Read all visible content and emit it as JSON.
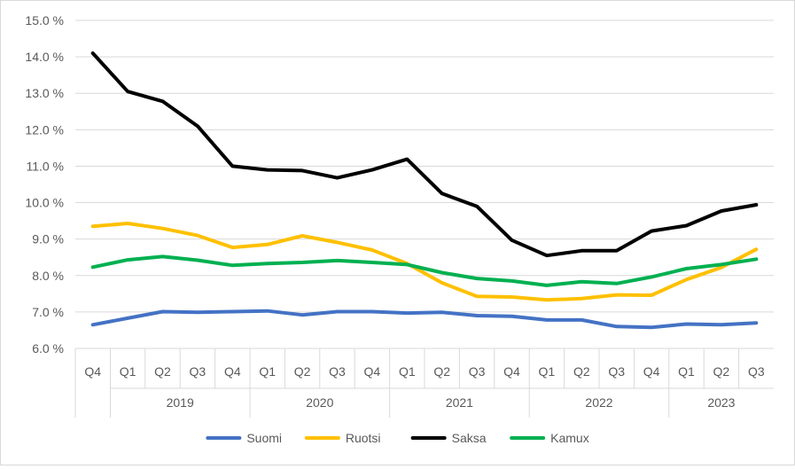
{
  "chart_data": {
    "type": "line",
    "title": "",
    "xlabel": "",
    "ylabel": "",
    "ylim": [
      6.0,
      15.0
    ],
    "ystep": 1.0,
    "y_tick_labels": [
      "6.0 %",
      "7.0 %",
      "8.0 %",
      "9.0 %",
      "10.0 %",
      "11.0 %",
      "12.0 %",
      "13.0 %",
      "14.0 %",
      "15.0 %"
    ],
    "grid": "horizontal",
    "legend_position": "bottom",
    "categories": [
      "Q4",
      "Q1",
      "Q2",
      "Q3",
      "Q4",
      "Q1",
      "Q2",
      "Q3",
      "Q4",
      "Q1",
      "Q2",
      "Q3",
      "Q4",
      "Q1",
      "Q2",
      "Q3",
      "Q4",
      "Q1",
      "Q2",
      "Q3"
    ],
    "year_groups": [
      {
        "label": "",
        "span": 1
      },
      {
        "label": "2019",
        "span": 4
      },
      {
        "label": "2020",
        "span": 4
      },
      {
        "label": "2021",
        "span": 4
      },
      {
        "label": "2022",
        "span": 4
      },
      {
        "label": "2023",
        "span": 3
      }
    ],
    "series": [
      {
        "name": "Suomi",
        "color": "#4472c4",
        "values": [
          6.65,
          6.83,
          7.01,
          6.99,
          7.01,
          7.03,
          6.92,
          7.01,
          7.01,
          6.97,
          6.99,
          6.9,
          6.88,
          6.78,
          6.78,
          6.6,
          6.58,
          6.67,
          6.65,
          6.7
        ]
      },
      {
        "name": "Ruotsi",
        "color": "#ffc000",
        "values": [
          9.35,
          9.43,
          9.29,
          9.1,
          8.77,
          8.85,
          9.09,
          8.91,
          8.7,
          8.33,
          7.8,
          7.43,
          7.41,
          7.33,
          7.37,
          7.47,
          7.46,
          7.89,
          8.22,
          8.72
        ]
      },
      {
        "name": "Saksa",
        "color": "#000000",
        "values": [
          14.1,
          13.05,
          12.78,
          12.1,
          11.0,
          10.9,
          10.88,
          10.68,
          10.9,
          11.19,
          10.25,
          9.9,
          8.97,
          8.55,
          8.68,
          8.68,
          9.22,
          9.37,
          9.77,
          9.94
        ]
      },
      {
        "name": "Kamux",
        "color": "#00b050",
        "values": [
          8.23,
          8.43,
          8.52,
          8.42,
          8.28,
          8.33,
          8.36,
          8.41,
          8.36,
          8.3,
          8.08,
          7.92,
          7.85,
          7.73,
          7.83,
          7.78,
          7.96,
          8.19,
          8.3,
          8.45
        ]
      }
    ]
  }
}
